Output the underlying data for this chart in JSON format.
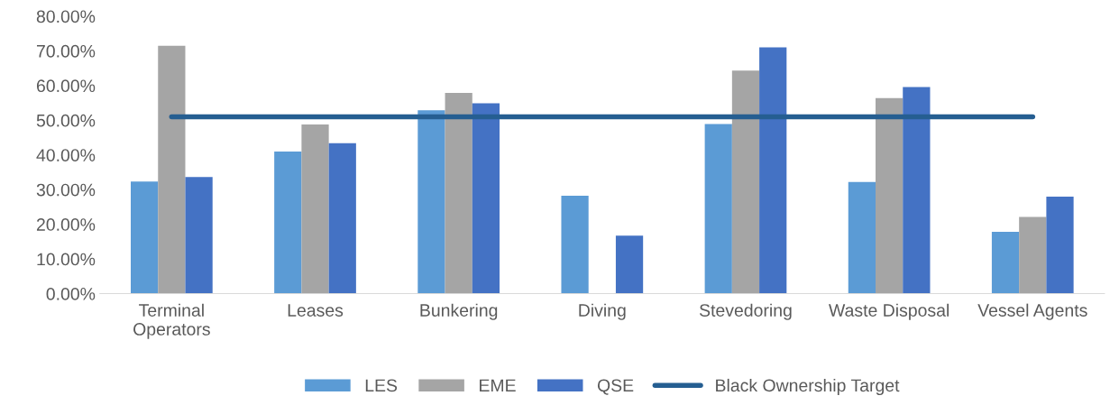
{
  "chart_data": {
    "type": "bar",
    "categories": [
      "Terminal\nOperators",
      "Leases",
      "Bunkering",
      "Diving",
      "Stevedoring",
      "Waste Disposal",
      "Vessel Agents"
    ],
    "series": [
      {
        "name": "LES",
        "color": "#5b9bd5",
        "values": [
          32.3,
          41.0,
          52.9,
          28.2,
          48.9,
          32.2,
          17.8
        ]
      },
      {
        "name": "EME",
        "color": "#a5a5a5",
        "values": [
          71.5,
          48.8,
          57.9,
          null,
          64.3,
          56.4,
          22.1
        ]
      },
      {
        "name": "QSE",
        "color": "#4472c4",
        "values": [
          33.6,
          43.4,
          54.9,
          16.7,
          71.0,
          59.6,
          28.0
        ]
      },
      {
        "name": "Black Ownership Target",
        "type": "line",
        "color": "#255e91",
        "values": [
          51,
          51,
          51,
          51,
          51,
          51,
          51
        ]
      }
    ],
    "ylim": [
      0,
      80
    ],
    "yticks": [
      {
        "value": 0,
        "label": "0.00%"
      },
      {
        "value": 10,
        "label": "10.00%"
      },
      {
        "value": 20,
        "label": "20.00%"
      },
      {
        "value": 30,
        "label": "30.00%"
      },
      {
        "value": 40,
        "label": "40.00%"
      },
      {
        "value": 50,
        "label": "50.00%"
      },
      {
        "value": 60,
        "label": "60.00%"
      },
      {
        "value": 70,
        "label": "70.00%"
      },
      {
        "value": 80,
        "label": "80.00%"
      }
    ],
    "grid": false,
    "legend": "bottom"
  }
}
